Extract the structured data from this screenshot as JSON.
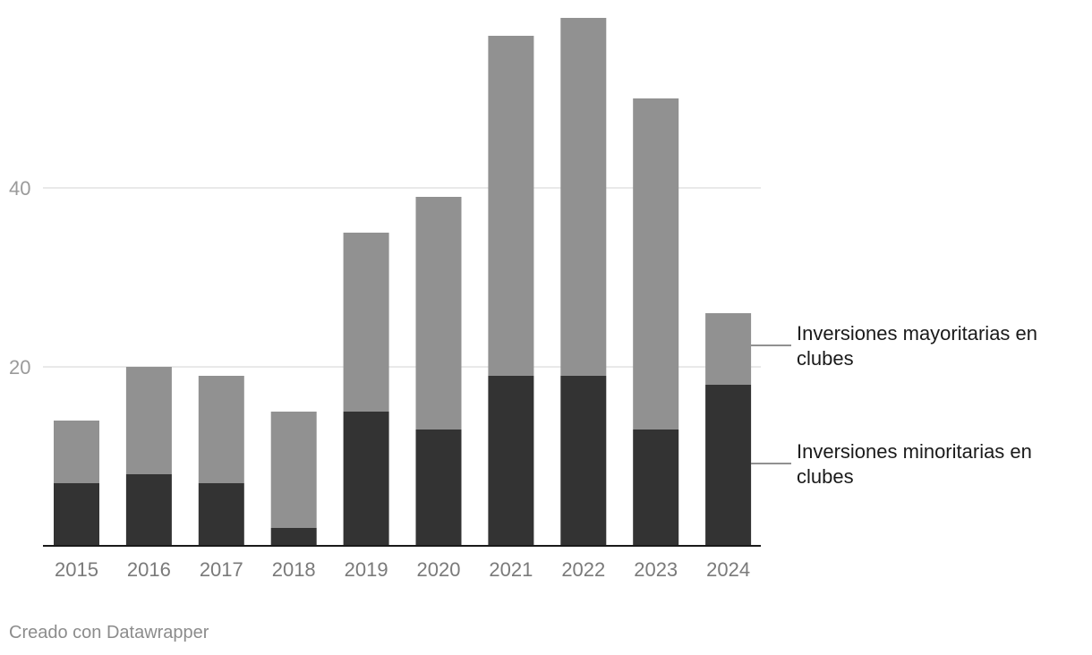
{
  "chart_data": {
    "type": "bar",
    "stacked": true,
    "categories": [
      "2015",
      "2016",
      "2017",
      "2018",
      "2019",
      "2020",
      "2021",
      "2022",
      "2023",
      "2024"
    ],
    "series": [
      {
        "name": "Inversiones minoritarias en clubes",
        "color": "#333333",
        "values": [
          7,
          8,
          7,
          2,
          15,
          13,
          19,
          19,
          13,
          18
        ]
      },
      {
        "name": "Inversiones mayoritarias en clubes",
        "color": "#919191",
        "values": [
          7,
          12,
          12,
          13,
          20,
          26,
          38,
          40,
          37,
          8
        ]
      }
    ],
    "legend_lines": {
      "mayoritarias": [
        "Inversiones mayoritarias en",
        "clubes"
      ],
      "minoritarias": [
        "Inversiones minoritarias en",
        "clubes"
      ]
    },
    "yticks": [
      20,
      40
    ],
    "ylim": [
      0,
      60
    ],
    "grid": true,
    "legend_placement": "right"
  },
  "footer": {
    "credit": "Creado con Datawrapper"
  }
}
